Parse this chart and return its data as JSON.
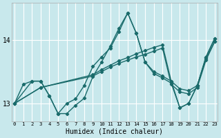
{
  "xlabel": "Humidex (Indice chaleur)",
  "bg_color": "#c8e8ec",
  "line_color": "#1a6b6b",
  "grid_color": "#ffffff",
  "xlim": [
    -0.3,
    23.3
  ],
  "ylim": [
    12.72,
    14.58
  ],
  "yticks": [
    13,
    14
  ],
  "xticks": [
    0,
    1,
    2,
    3,
    4,
    5,
    6,
    7,
    8,
    9,
    10,
    11,
    12,
    13,
    14,
    15,
    16,
    17,
    18,
    19,
    20,
    21,
    22,
    23
  ],
  "line1_x": [
    0,
    1,
    2,
    3,
    4,
    5,
    6,
    7,
    8,
    9,
    10,
    11,
    12,
    13,
    14,
    15,
    16,
    17,
    18,
    19,
    20,
    21,
    22,
    23
  ],
  "line1_y": [
    13.0,
    13.3,
    13.35,
    13.35,
    13.12,
    12.84,
    12.84,
    12.97,
    13.08,
    13.42,
    13.65,
    13.9,
    14.18,
    14.42,
    14.1,
    13.65,
    13.5,
    13.43,
    13.35,
    12.93,
    13.0,
    13.28,
    13.73,
    14.02
  ],
  "line2_x": [
    0,
    2,
    3,
    4,
    5,
    6,
    7,
    8,
    9,
    10,
    11,
    12,
    13,
    14,
    15,
    16,
    17,
    18,
    19,
    20,
    21,
    22,
    23
  ],
  "line2_y": [
    13.0,
    13.35,
    13.35,
    13.12,
    12.84,
    13.0,
    13.07,
    13.28,
    13.58,
    13.73,
    13.87,
    14.13,
    14.42,
    14.1,
    13.65,
    13.47,
    13.4,
    13.32,
    12.93,
    13.0,
    13.28,
    13.7,
    13.97
  ],
  "line3_x": [
    0,
    3,
    9,
    10,
    11,
    12,
    13,
    14,
    15,
    16,
    17,
    18,
    19,
    20,
    21,
    22,
    23
  ],
  "line3_y": [
    13.0,
    13.25,
    13.45,
    13.53,
    13.6,
    13.67,
    13.72,
    13.78,
    13.83,
    13.88,
    13.92,
    13.35,
    13.23,
    13.2,
    13.28,
    13.73,
    14.02
  ],
  "line4_x": [
    0,
    3,
    9,
    10,
    11,
    12,
    13,
    14,
    15,
    16,
    17,
    18,
    19,
    20,
    21,
    22,
    23
  ],
  "line4_y": [
    13.0,
    13.25,
    13.43,
    13.5,
    13.57,
    13.63,
    13.68,
    13.73,
    13.77,
    13.82,
    13.87,
    13.3,
    13.18,
    13.15,
    13.25,
    13.68,
    13.97
  ]
}
